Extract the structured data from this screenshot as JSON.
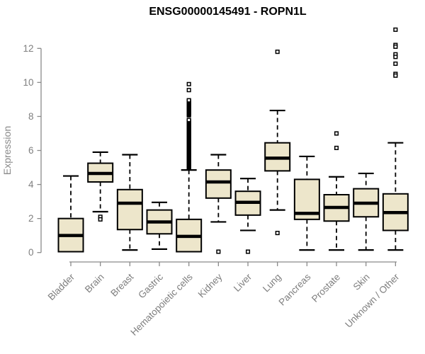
{
  "title": "ENSG00000145491 - ROPN1L",
  "chart_data": {
    "type": "boxplot",
    "title": "ENSG00000145491 - ROPN1L",
    "xlabel": "",
    "ylabel": "Expression",
    "ylim": [
      0,
      12
    ],
    "yticks": [
      0,
      2,
      4,
      6,
      8,
      10,
      12
    ],
    "grid": false,
    "legend": "none",
    "categories": [
      "Bladder",
      "Brain",
      "Breast",
      "Gastric",
      "Hematopoietic cells",
      "Kidney",
      "Liver",
      "Lung",
      "Pancreas",
      "Prostate",
      "Skin",
      "Unknown / Other"
    ],
    "series": [
      {
        "category": "Bladder",
        "whisker_low": 0.05,
        "q1": 0.05,
        "median": 1.0,
        "q3": 2.0,
        "whisker_high": 4.5,
        "outliers": []
      },
      {
        "category": "Brain",
        "whisker_low": 2.4,
        "q1": 4.15,
        "median": 4.65,
        "q3": 5.25,
        "whisker_high": 5.9,
        "outliers": [
          2.1,
          1.95
        ]
      },
      {
        "category": "Breast",
        "whisker_low": 0.15,
        "q1": 1.35,
        "median": 2.9,
        "q3": 3.7,
        "whisker_high": 5.75,
        "outliers": []
      },
      {
        "category": "Gastric",
        "whisker_low": 0.2,
        "q1": 1.1,
        "median": 1.8,
        "q3": 2.5,
        "whisker_high": 2.95,
        "outliers": []
      },
      {
        "category": "Hematopoietic cells",
        "whisker_low": 0.05,
        "q1": 0.05,
        "median": 0.95,
        "q3": 1.95,
        "whisker_high": 4.85,
        "outliers": [
          9.9,
          9.55
        ],
        "outlier_dense_ranges": [
          {
            "from": 4.95,
            "to": 7.82,
            "step": 0.04
          },
          {
            "from": 8.07,
            "to": 8.95,
            "step": 0.04
          }
        ]
      },
      {
        "category": "Kidney",
        "whisker_low": 1.8,
        "q1": 3.2,
        "median": 4.15,
        "q3": 4.85,
        "whisker_high": 5.75,
        "outliers": [
          0.05
        ]
      },
      {
        "category": "Liver",
        "whisker_low": 1.3,
        "q1": 2.2,
        "median": 2.95,
        "q3": 3.6,
        "whisker_high": 4.35,
        "outliers": [
          0.05
        ]
      },
      {
        "category": "Lung",
        "whisker_low": 2.5,
        "q1": 4.8,
        "median": 5.55,
        "q3": 6.45,
        "whisker_high": 8.35,
        "outliers": [
          11.8,
          1.15
        ]
      },
      {
        "category": "Pancreas",
        "whisker_low": 0.15,
        "q1": 1.95,
        "median": 2.3,
        "q3": 4.3,
        "whisker_high": 5.65,
        "outliers": []
      },
      {
        "category": "Prostate",
        "whisker_low": 0.15,
        "q1": 1.85,
        "median": 2.65,
        "q3": 3.4,
        "whisker_high": 4.45,
        "outliers": [
          7.0,
          6.15
        ]
      },
      {
        "category": "Skin",
        "whisker_low": 0.15,
        "q1": 2.1,
        "median": 2.9,
        "q3": 3.75,
        "whisker_high": 4.65,
        "outliers": []
      },
      {
        "category": "Unknown / Other",
        "whisker_low": 0.15,
        "q1": 1.3,
        "median": 2.35,
        "q3": 3.45,
        "whisker_high": 6.45,
        "outliers": [
          13.1,
          12.2,
          12.1,
          11.65,
          11.5,
          11.1,
          10.5,
          10.4
        ]
      }
    ],
    "colors": {
      "box_fill": "#EDE6CB",
      "box_border": "#000000",
      "median": "#000000",
      "whisker": "#000000",
      "axis": "#8A8A8A",
      "tick_label": "#7E7E7E",
      "axis_label": "#8A8A8A",
      "title": "#000000",
      "background": "#FFFFFF"
    }
  }
}
